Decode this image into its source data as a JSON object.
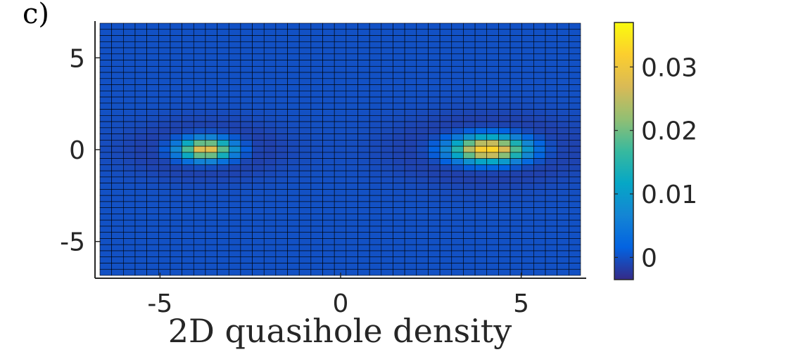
{
  "panel_label": "c)",
  "chart_data": {
    "type": "heatmap",
    "title": "",
    "xlabel": "2D quasihole density",
    "ylabel": "",
    "xlim": [
      -6.8,
      6.8
    ],
    "ylim": [
      -7,
      7
    ],
    "x_ticks": [
      {
        "value": -5,
        "label": "-5"
      },
      {
        "value": 0,
        "label": "0"
      },
      {
        "value": 5,
        "label": "5"
      }
    ],
    "y_ticks": [
      {
        "value": 5,
        "label": "5"
      },
      {
        "value": 0,
        "label": "0"
      },
      {
        "value": -5,
        "label": "-5"
      }
    ],
    "grid": {
      "columns": 41,
      "rows": 41,
      "x_range": [
        -6.8,
        6.8
      ],
      "y_range": [
        -6.8,
        6.8
      ]
    },
    "background_value": 0,
    "peaks": [
      {
        "x": -3.8,
        "y": 0,
        "amplitude": 0.0325,
        "sigma_x": 0.55,
        "sigma_y": 0.42
      },
      {
        "x": 4.2,
        "y": 0,
        "amplitude": 0.037,
        "sigma_x": 0.75,
        "sigma_y": 0.5
      }
    ],
    "depletion_rings": [
      {
        "x": -3.8,
        "y": 0,
        "amplitude": -0.0035,
        "sigma_x": 1.4,
        "sigma_y": 1.0
      },
      {
        "x": 4.2,
        "y": 0,
        "amplitude": -0.004,
        "sigma_x": 1.7,
        "sigma_y": 1.2
      }
    ],
    "colorbar": {
      "colormap": "parula",
      "range": [
        -0.0035,
        0.037
      ],
      "ticks": [
        {
          "value": 0,
          "label": "0"
        },
        {
          "value": 0.01,
          "label": "0.01"
        },
        {
          "value": 0.02,
          "label": "0.02"
        },
        {
          "value": 0.03,
          "label": "0.03"
        }
      ]
    }
  },
  "colors": {
    "axis": "#262626",
    "cell_edge": "#000000",
    "parula": [
      "#352a87",
      "#0363e1",
      "#1485d4",
      "#06a7c6",
      "#38b99e",
      "#92bf73",
      "#d9ba56",
      "#fcce2e",
      "#f9fb0e"
    ]
  }
}
